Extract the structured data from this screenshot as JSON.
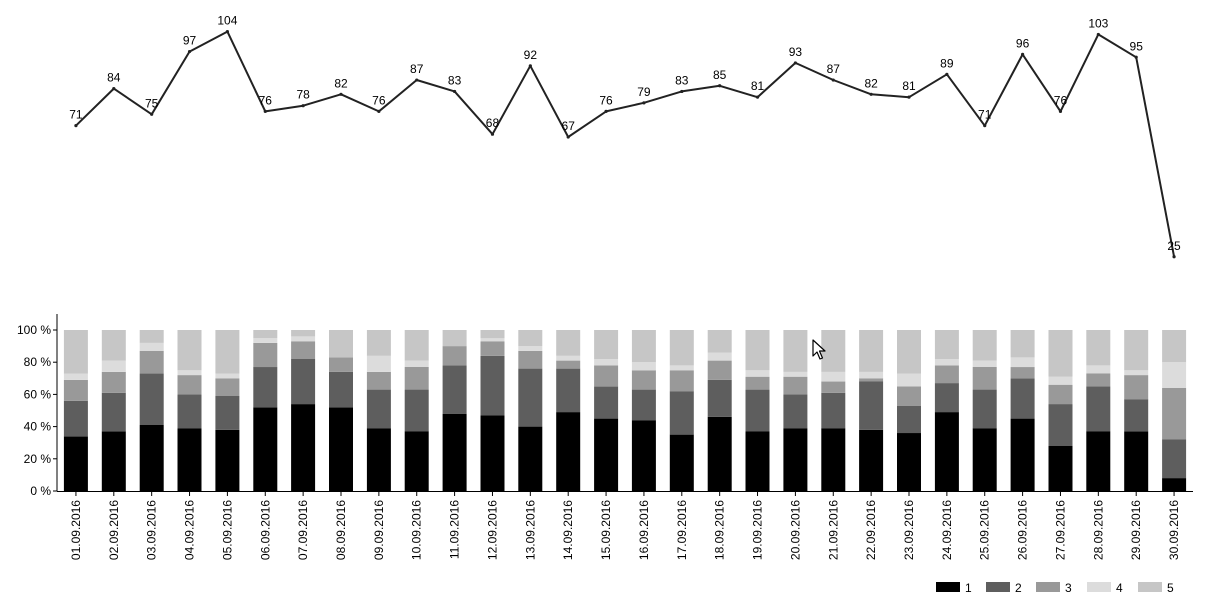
{
  "chart_data": [
    {
      "type": "line",
      "x": [
        "01.09.2016",
        "02.09.2016",
        "03.09.2016",
        "04.09.2016",
        "05.09.2016",
        "06.09.2016",
        "07.09.2016",
        "08.09.2016",
        "09.09.2016",
        "10.09.2016",
        "11.09.2016",
        "12.09.2016",
        "13.09.2016",
        "14.09.2016",
        "15.09.2016",
        "16.09.2016",
        "17.09.2016",
        "18.09.2016",
        "19.09.2016",
        "20.09.2016",
        "21.09.2016",
        "22.09.2016",
        "23.09.2016",
        "24.09.2016",
        "25.09.2016",
        "26.09.2016",
        "27.09.2016",
        "28.09.2016",
        "29.09.2016",
        "30.09.2016"
      ],
      "values": [
        71,
        84,
        75,
        97,
        104,
        76,
        78,
        82,
        76,
        87,
        83,
        68,
        92,
        67,
        76,
        79,
        83,
        85,
        81,
        93,
        87,
        82,
        81,
        89,
        71,
        96,
        76,
        103,
        95,
        25
      ],
      "data_labels": [
        "71",
        "84",
        "75",
        "97",
        "104",
        "76",
        "78",
        "82",
        "76",
        "87",
        "83",
        "68",
        "92",
        "67",
        "76",
        "79",
        "83",
        "85",
        "81",
        "93",
        "87",
        "82",
        "81",
        "89",
        "71",
        "96",
        "76",
        "103",
        "95",
        "25"
      ],
      "color": "#222222"
    },
    {
      "type": "bar",
      "stacked": true,
      "categories": [
        "01.09.2016",
        "02.09.2016",
        "03.09.2016",
        "04.09.2016",
        "05.09.2016",
        "06.09.2016",
        "07.09.2016",
        "08.09.2016",
        "09.09.2016",
        "10.09.2016",
        "11.09.2016",
        "12.09.2016",
        "13.09.2016",
        "14.09.2016",
        "15.09.2016",
        "16.09.2016",
        "17.09.2016",
        "18.09.2016",
        "19.09.2016",
        "20.09.2016",
        "21.09.2016",
        "22.09.2016",
        "23.09.2016",
        "24.09.2016",
        "25.09.2016",
        "26.09.2016",
        "27.09.2016",
        "28.09.2016",
        "29.09.2016",
        "30.09.2016"
      ],
      "ylim": [
        0,
        100
      ],
      "yticks": [
        "0 %",
        "20 %",
        "40 %",
        "60 %",
        "80 %",
        "100 %"
      ],
      "legend_position": "bottom-right",
      "series": [
        {
          "name": "1",
          "color": "#000000",
          "values": [
            34,
            37,
            41,
            39,
            38,
            52,
            54,
            52,
            39,
            37,
            48,
            47,
            40,
            49,
            45,
            44,
            35,
            46,
            37,
            39,
            39,
            38,
            36,
            49,
            39,
            45,
            28,
            37,
            37,
            8
          ]
        },
        {
          "name": "2",
          "color": "#5e5e5e",
          "values": [
            22,
            24,
            32,
            21,
            21,
            25,
            28,
            22,
            24,
            26,
            30,
            37,
            36,
            27,
            20,
            19,
            27,
            23,
            26,
            21,
            22,
            30,
            17,
            18,
            24,
            25,
            26,
            28,
            20,
            24
          ]
        },
        {
          "name": "3",
          "color": "#999999",
          "values": [
            13,
            13,
            14,
            12,
            11,
            15,
            11,
            9,
            11,
            14,
            12,
            9,
            11,
            5,
            13,
            12,
            13,
            12,
            8,
            11,
            7,
            2,
            12,
            11,
            14,
            7,
            12,
            8,
            15,
            32
          ]
        },
        {
          "name": "4",
          "color": "#dcdcdc",
          "values": [
            4,
            7,
            5,
            3,
            3,
            3,
            3,
            0,
            10,
            4,
            0,
            2,
            3,
            3,
            4,
            5,
            3,
            5,
            4,
            3,
            6,
            4,
            8,
            4,
            4,
            6,
            5,
            5,
            3,
            16
          ]
        },
        {
          "name": "5",
          "color": "#c6c6c6",
          "values": [
            27,
            19,
            8,
            25,
            27,
            5,
            4,
            17,
            16,
            19,
            10,
            5,
            10,
            16,
            18,
            20,
            22,
            14,
            25,
            26,
            26,
            26,
            27,
            18,
            19,
            17,
            29,
            22,
            25,
            20
          ]
        }
      ]
    }
  ]
}
